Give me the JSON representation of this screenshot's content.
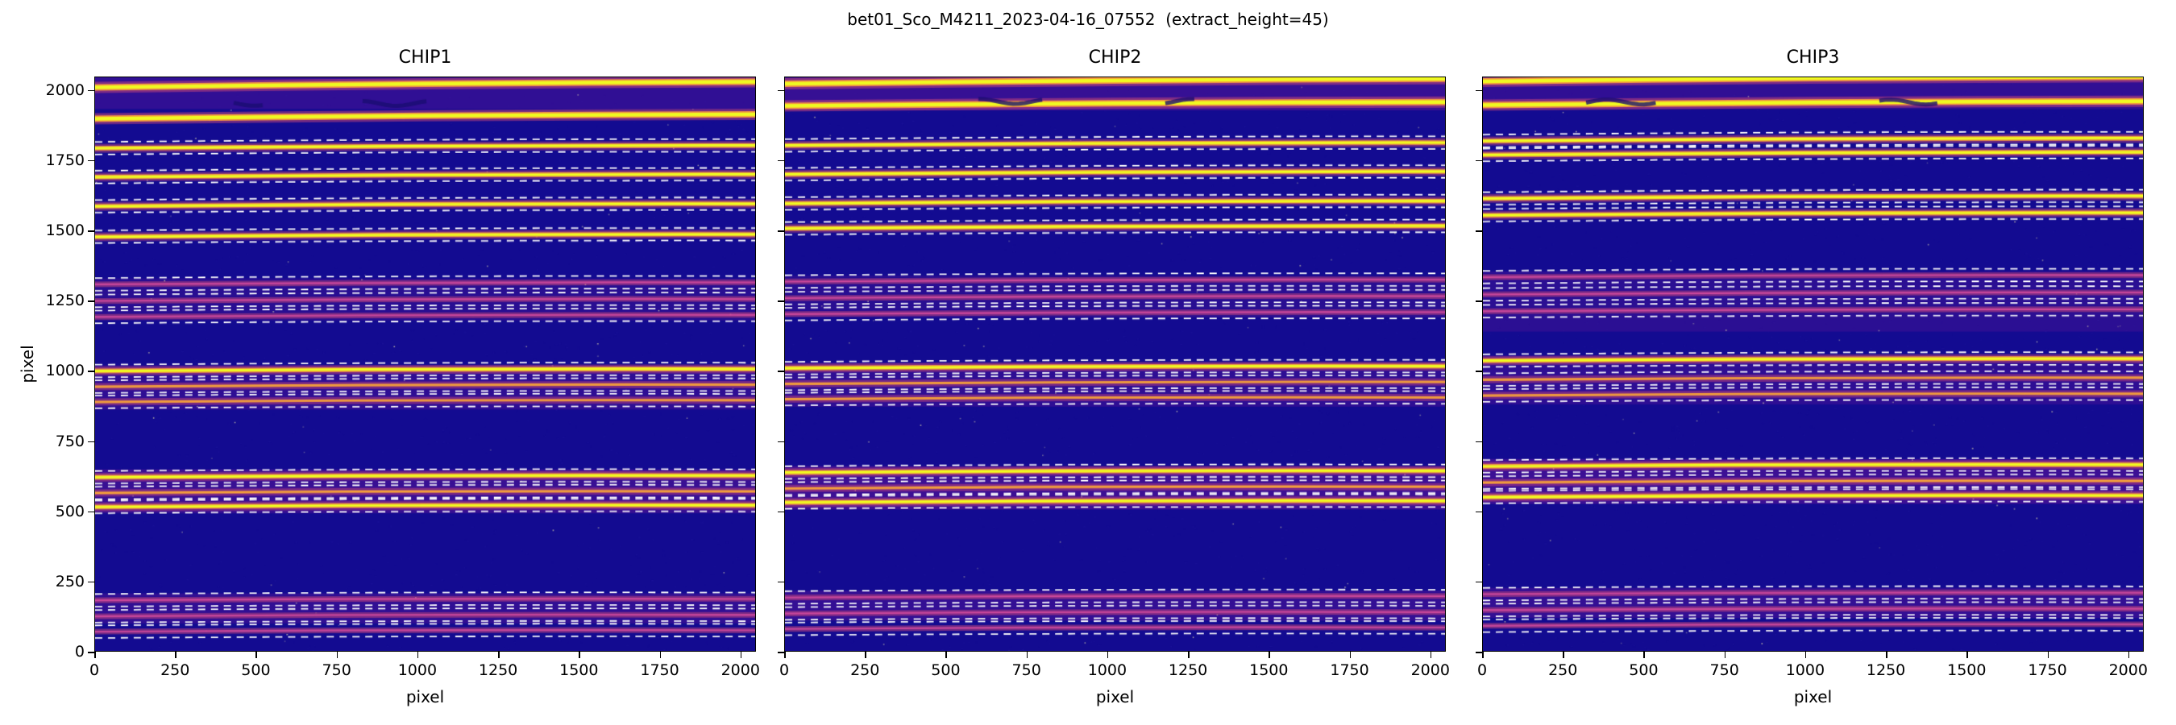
{
  "figure": {
    "suptitle": "bet01_Sco_M4211_2023-04-16_07552  (extract_height=45)"
  },
  "axes": {
    "xlabel": "pixel",
    "ylabel": "pixel",
    "xmax": 2048,
    "ymax": 2048,
    "xticks": [
      0,
      250,
      500,
      750,
      1000,
      1250,
      1500,
      1750,
      2000
    ],
    "yticks": [
      0,
      250,
      500,
      750,
      1000,
      1250,
      1500,
      1750,
      2000
    ]
  },
  "colors": {
    "bg": "#130b91",
    "band": "#9c1f9e",
    "halo": "#cc4778",
    "faint_core": "#d14a9d",
    "medium_core": "#fca636",
    "bright_edge": "#f99a3e",
    "bright_core": "#f0f921",
    "dash": "#ffffff",
    "speck": "#4f43c8",
    "hot": "#f7f3b0",
    "artifact": "#1a0c72"
  },
  "chart_data": {
    "type": "heatmap",
    "title": "bet01_Sco_M4211_2023-04-16_07552  (extract_height=45)",
    "xlabel": "pixel",
    "ylabel": "pixel",
    "xlim": [
      0,
      2048
    ],
    "ylim": [
      0,
      2048
    ],
    "extract_height": 45,
    "legend": "none",
    "description": "Three echelle spectrograph detector images with bright horizontal spectral order traces; white dashed lines mark extraction windows of height 45 px around each traced order.",
    "panels": [
      {
        "title": "CHIP1",
        "seed": 11,
        "bands": [
          {
            "y0": 1935,
            "y1": 2048,
            "a": 0.22
          },
          {
            "y0": 1180,
            "y1": 1330,
            "a": 0.16
          },
          {
            "y0": 862,
            "y1": 1020,
            "a": 0.2
          },
          {
            "y0": 492,
            "y1": 648,
            "a": 0.28
          },
          {
            "y0": 98,
            "y1": 205,
            "a": 0.22
          }
        ],
        "orders": [
          {
            "y": 2022,
            "i": "bright2",
            "dash": false,
            "s": 20
          },
          {
            "y": 1908,
            "i": "bright2",
            "dash": false,
            "s": 16
          },
          {
            "y": 1800,
            "i": "bright",
            "dash": true,
            "s": 10
          },
          {
            "y": 1697,
            "i": "bright",
            "dash": true,
            "s": 10
          },
          {
            "y": 1592,
            "i": "bright",
            "dash": true,
            "s": 9
          },
          {
            "y": 1483,
            "i": "bright",
            "dash": true,
            "s": 9
          },
          {
            "y": 1312,
            "i": "faint",
            "dash": true,
            "s": 7
          },
          {
            "y": 1253,
            "i": "faint",
            "dash": true,
            "s": 7
          },
          {
            "y": 1196,
            "i": "faint",
            "dash": true,
            "s": 7
          },
          {
            "y": 1003,
            "i": "bright",
            "dash": true,
            "s": 7
          },
          {
            "y": 947,
            "i": "medium",
            "dash": true,
            "s": 7
          },
          {
            "y": 892,
            "i": "medium",
            "dash": true,
            "s": 6
          },
          {
            "y": 623,
            "i": "bright",
            "dash": true,
            "s": 6
          },
          {
            "y": 567,
            "i": "medium",
            "dash": true,
            "s": 6
          },
          {
            "y": 517,
            "i": "bright",
            "dash": true,
            "s": 6
          },
          {
            "y": 183,
            "i": "faint",
            "dash": true,
            "s": 5
          },
          {
            "y": 126,
            "i": "faint",
            "dash": true,
            "s": 5
          },
          {
            "y": 71,
            "i": "faint",
            "dash": true,
            "s": 5
          }
        ],
        "artifacts": [
          {
            "y": 1955,
            "x0": 830,
            "x1": 1040
          },
          {
            "y": 1955,
            "x0": 430,
            "x1": 520
          }
        ]
      },
      {
        "title": "CHIP2",
        "seed": 22,
        "bands": [
          {
            "y0": 1930,
            "y1": 2048,
            "a": 0.26
          },
          {
            "y0": 1190,
            "y1": 1340,
            "a": 0.16
          },
          {
            "y0": 872,
            "y1": 1030,
            "a": 0.2
          },
          {
            "y0": 505,
            "y1": 660,
            "a": 0.3
          },
          {
            "y0": 108,
            "y1": 215,
            "a": 0.24
          }
        ],
        "orders": [
          {
            "y": 2034,
            "i": "bright2",
            "dash": false,
            "s": 18
          },
          {
            "y": 1953,
            "i": "bright2",
            "dash": false,
            "s": 14
          },
          {
            "y": 1810,
            "i": "bright",
            "dash": true,
            "s": 10
          },
          {
            "y": 1707,
            "i": "bright",
            "dash": true,
            "s": 10
          },
          {
            "y": 1602,
            "i": "bright",
            "dash": true,
            "s": 9
          },
          {
            "y": 1513,
            "i": "bright",
            "dash": true,
            "s": 9
          },
          {
            "y": 1322,
            "i": "faint",
            "dash": true,
            "s": 7
          },
          {
            "y": 1263,
            "i": "faint",
            "dash": true,
            "s": 7
          },
          {
            "y": 1206,
            "i": "faint",
            "dash": true,
            "s": 7
          },
          {
            "y": 1013,
            "i": "bright",
            "dash": true,
            "s": 7
          },
          {
            "y": 957,
            "i": "medium",
            "dash": true,
            "s": 7
          },
          {
            "y": 902,
            "i": "medium",
            "dash": true,
            "s": 6
          },
          {
            "y": 640,
            "i": "bright",
            "dash": true,
            "s": 6
          },
          {
            "y": 583,
            "i": "medium",
            "dash": true,
            "s": 6
          },
          {
            "y": 533,
            "i": "bright",
            "dash": true,
            "s": 6
          },
          {
            "y": 193,
            "i": "faint",
            "dash": true,
            "s": 5
          },
          {
            "y": 136,
            "i": "faint",
            "dash": true,
            "s": 5
          },
          {
            "y": 81,
            "i": "faint",
            "dash": true,
            "s": 5
          }
        ],
        "artifacts": [
          {
            "y": 1962,
            "x0": 600,
            "x1": 800
          },
          {
            "y": 1962,
            "x0": 1180,
            "x1": 1280
          }
        ]
      },
      {
        "title": "CHIP3",
        "seed": 33,
        "bands": [
          {
            "y0": 1935,
            "y1": 2048,
            "a": 0.22
          },
          {
            "y0": 1140,
            "y1": 1355,
            "a": 0.18
          },
          {
            "y0": 880,
            "y1": 1055,
            "a": 0.2
          },
          {
            "y0": 525,
            "y1": 685,
            "a": 0.3
          },
          {
            "y0": 118,
            "y1": 225,
            "a": 0.24
          }
        ],
        "orders": [
          {
            "y": 2042,
            "i": "bright2",
            "dash": false,
            "s": 16
          },
          {
            "y": 1956,
            "i": "bright2",
            "dash": false,
            "s": 14
          },
          {
            "y": 1826,
            "i": "bright",
            "dash": true,
            "s": 10
          },
          {
            "y": 1776,
            "i": "bright",
            "dash": true,
            "s": 10
          },
          {
            "y": 1620,
            "i": "bright",
            "dash": true,
            "s": 9
          },
          {
            "y": 1560,
            "i": "bright",
            "dash": true,
            "s": 9
          },
          {
            "y": 1338,
            "i": "faint",
            "dash": true,
            "s": 7
          },
          {
            "y": 1276,
            "i": "faint",
            "dash": true,
            "s": 7
          },
          {
            "y": 1216,
            "i": "faint",
            "dash": true,
            "s": 7
          },
          {
            "y": 1040,
            "i": "bright",
            "dash": true,
            "s": 7
          },
          {
            "y": 972,
            "i": "medium",
            "dash": true,
            "s": 7
          },
          {
            "y": 915,
            "i": "medium",
            "dash": true,
            "s": 6
          },
          {
            "y": 662,
            "i": "bright",
            "dash": true,
            "s": 6
          },
          {
            "y": 604,
            "i": "medium",
            "dash": true,
            "s": 6
          },
          {
            "y": 552,
            "i": "bright",
            "dash": true,
            "s": 6
          },
          {
            "y": 205,
            "i": "faint",
            "dash": true,
            "s": 5
          },
          {
            "y": 148,
            "i": "faint",
            "dash": true,
            "s": 5
          },
          {
            "y": 92,
            "i": "faint",
            "dash": true,
            "s": 5
          }
        ],
        "artifacts": [
          {
            "y": 1960,
            "x0": 320,
            "x1": 540
          },
          {
            "y": 1960,
            "x0": 1230,
            "x1": 1420
          }
        ]
      }
    ]
  }
}
